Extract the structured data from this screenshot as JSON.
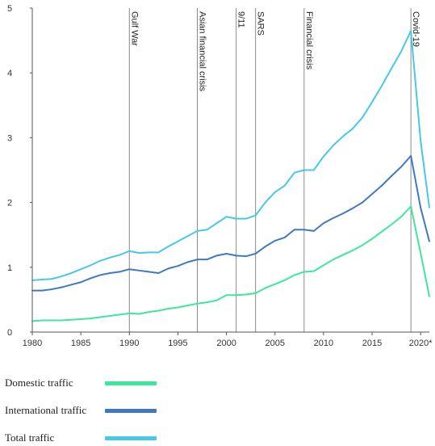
{
  "chart_data": {
    "type": "line",
    "title": "",
    "xlabel": "",
    "ylabel": "",
    "xlim": [
      1980,
      2020.9
    ],
    "ylim": [
      0,
      5
    ],
    "x_ticks": [
      1980,
      1985,
      1990,
      1995,
      2000,
      2005,
      2010,
      2015,
      2020
    ],
    "x_tick_labels": [
      "1980",
      "1985",
      "1990",
      "1995",
      "2000",
      "2005",
      "2010",
      "2015",
      "2020*"
    ],
    "y_ticks": [
      0,
      1,
      2,
      3,
      4,
      5
    ],
    "y_tick_labels": [
      "0",
      "1",
      "2",
      "3",
      "4",
      "5"
    ],
    "grid": false,
    "legend_position": "bottom",
    "x": [
      1980,
      1981,
      1982,
      1983,
      1984,
      1985,
      1986,
      1987,
      1988,
      1989,
      1990,
      1991,
      1992,
      1993,
      1994,
      1995,
      1996,
      1997,
      1998,
      1999,
      2000,
      2001,
      2002,
      2003,
      2004,
      2005,
      2006,
      2007,
      2008,
      2009,
      2010,
      2011,
      2012,
      2013,
      2014,
      2015,
      2016,
      2017,
      2018,
      2019,
      2020,
      2020.9
    ],
    "series": [
      {
        "name": "Domestic traffic",
        "color": "#3ee89a",
        "values": [
          0.17,
          0.18,
          0.18,
          0.18,
          0.19,
          0.2,
          0.21,
          0.23,
          0.25,
          0.27,
          0.29,
          0.28,
          0.31,
          0.33,
          0.36,
          0.38,
          0.41,
          0.44,
          0.46,
          0.49,
          0.57,
          0.57,
          0.58,
          0.6,
          0.68,
          0.74,
          0.8,
          0.88,
          0.93,
          0.94,
          1.03,
          1.12,
          1.19,
          1.26,
          1.34,
          1.44,
          1.55,
          1.66,
          1.78,
          1.94,
          1.22,
          0.55
        ]
      },
      {
        "name": "International traffic",
        "color": "#3f78c4",
        "values": [
          0.64,
          0.64,
          0.66,
          0.69,
          0.73,
          0.77,
          0.83,
          0.88,
          0.91,
          0.93,
          0.97,
          0.95,
          0.93,
          0.91,
          0.98,
          1.02,
          1.08,
          1.12,
          1.12,
          1.18,
          1.21,
          1.18,
          1.17,
          1.21,
          1.32,
          1.41,
          1.46,
          1.58,
          1.58,
          1.56,
          1.68,
          1.76,
          1.83,
          1.91,
          2.0,
          2.13,
          2.26,
          2.41,
          2.55,
          2.72,
          1.92,
          1.4
        ]
      },
      {
        "name": "Total traffic",
        "color": "#48c8e8",
        "values": [
          0.8,
          0.81,
          0.82,
          0.86,
          0.91,
          0.97,
          1.03,
          1.1,
          1.15,
          1.19,
          1.25,
          1.22,
          1.23,
          1.23,
          1.32,
          1.4,
          1.48,
          1.56,
          1.58,
          1.68,
          1.78,
          1.75,
          1.75,
          1.8,
          2.0,
          2.16,
          2.26,
          2.46,
          2.5,
          2.5,
          2.71,
          2.88,
          3.02,
          3.14,
          3.31,
          3.55,
          3.8,
          4.07,
          4.33,
          4.65,
          2.95,
          1.92
        ]
      }
    ],
    "annotations": [
      {
        "x": 1990,
        "label": "Gulf War"
      },
      {
        "x": 1997,
        "label": "Asian financial crisis"
      },
      {
        "x": 2001,
        "label": "9/11"
      },
      {
        "x": 2003,
        "label": "SARS"
      },
      {
        "x": 2008,
        "label": "Financial crisis"
      },
      {
        "x": 2019,
        "label": "Covid-19"
      }
    ]
  }
}
